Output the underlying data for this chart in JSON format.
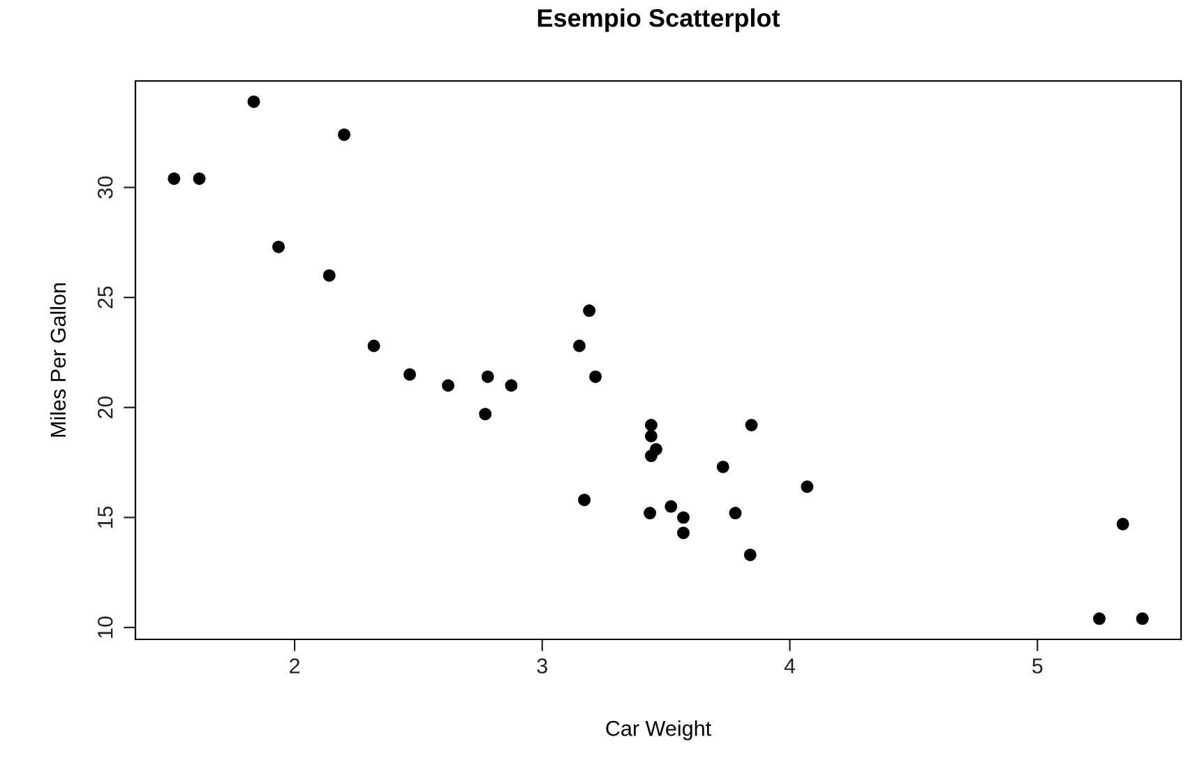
{
  "chart_data": {
    "type": "scatter",
    "title": "Esempio Scatterplot",
    "xlabel": "Car Weight",
    "ylabel": "Miles Per Gallon",
    "x": [
      2.62,
      2.875,
      2.32,
      3.215,
      3.44,
      3.46,
      3.57,
      3.19,
      3.15,
      3.44,
      3.44,
      4.07,
      3.73,
      3.78,
      5.25,
      5.424,
      5.345,
      2.2,
      1.615,
      1.835,
      2.465,
      3.52,
      3.435,
      3.84,
      3.845,
      1.935,
      2.14,
      1.513,
      3.17,
      2.77,
      3.57,
      2.78
    ],
    "values": [
      21.0,
      21.0,
      22.8,
      21.4,
      18.7,
      18.1,
      14.3,
      24.4,
      22.8,
      19.2,
      17.8,
      16.4,
      17.3,
      15.2,
      10.4,
      10.4,
      14.7,
      32.4,
      30.4,
      33.9,
      21.5,
      15.5,
      15.2,
      13.3,
      19.2,
      27.3,
      26.0,
      30.4,
      15.8,
      19.7,
      15.0,
      21.4
    ],
    "color": "#000000",
    "marker": "circle",
    "xlim": [
      1.357,
      5.58
    ],
    "ylim": [
      9.46,
      34.84
    ],
    "xticks": [
      2,
      3,
      4,
      5
    ],
    "yticks": [
      10,
      15,
      20,
      25,
      30
    ],
    "grid": false
  }
}
